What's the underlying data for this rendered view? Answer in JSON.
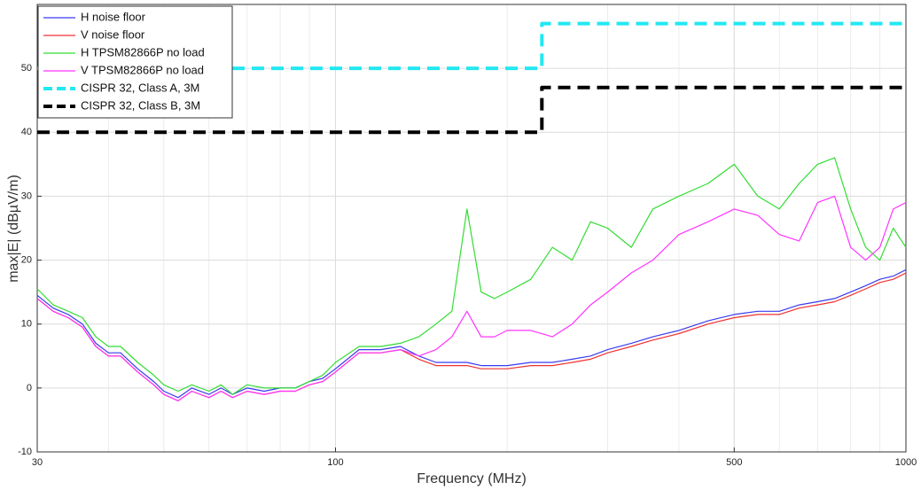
{
  "chart_data": {
    "type": "line",
    "x_label": "Frequency (MHz)",
    "y_label": "max|E| (dBµV/m)",
    "xscale": "log",
    "xlim": [
      30,
      1000
    ],
    "xticks": [
      30,
      100,
      500,
      1000
    ],
    "ylim": [
      -10,
      60
    ],
    "yticks": [
      -10,
      0,
      10,
      20,
      30,
      40,
      50
    ],
    "grid": true,
    "minor_grid": true,
    "legend": "upper left",
    "x": [
      30,
      32,
      34,
      36,
      38,
      40,
      42,
      45,
      48,
      50,
      53,
      56,
      60,
      63,
      66,
      70,
      75,
      80,
      85,
      90,
      95,
      100,
      110,
      120,
      130,
      140,
      150,
      160,
      170,
      180,
      190,
      200,
      220,
      240,
      260,
      280,
      300,
      330,
      360,
      400,
      450,
      500,
      550,
      600,
      650,
      700,
      750,
      800,
      850,
      900,
      950,
      1000
    ],
    "series": [
      {
        "name": "H noise floor",
        "color": "#3a3af0",
        "style": "solid",
        "values": [
          14.5,
          12.5,
          11.5,
          10,
          7,
          5.5,
          5.5,
          3,
          1,
          -0.5,
          -1.5,
          0,
          -1,
          0,
          -1,
          0,
          -0.5,
          0,
          0,
          1,
          1.5,
          3,
          6,
          6,
          6.5,
          5,
          4,
          4,
          4,
          3.5,
          3.5,
          3.5,
          4,
          4,
          4.5,
          5,
          6,
          7,
          8,
          9,
          10.5,
          11.5,
          12,
          12,
          13,
          13.5,
          14,
          15,
          16,
          17,
          17.5,
          18.5
        ]
      },
      {
        "name": "V noise floor",
        "color": "#f03030",
        "style": "solid",
        "values": [
          14,
          12,
          11,
          9.5,
          6.5,
          5,
          5,
          2.5,
          0.5,
          -1,
          -2,
          -0.5,
          -1.5,
          -0.5,
          -1.5,
          -0.5,
          -1,
          -0.5,
          -0.5,
          0.5,
          1,
          2.5,
          5.5,
          5.5,
          6,
          4.5,
          3.5,
          3.5,
          3.5,
          3,
          3,
          3,
          3.5,
          3.5,
          4,
          4.5,
          5.5,
          6.5,
          7.5,
          8.5,
          10,
          11,
          11.5,
          11.5,
          12.5,
          13,
          13.5,
          14.5,
          15.5,
          16.5,
          17,
          18
        ]
      },
      {
        "name": "H TPSM82866P no load",
        "color": "#33dd33",
        "style": "solid",
        "values": [
          15.5,
          13,
          12,
          11,
          8,
          6.5,
          6.5,
          4,
          2,
          0.5,
          -0.5,
          0.5,
          -0.5,
          0.5,
          -1,
          0.5,
          0,
          0,
          0,
          1,
          2,
          4,
          6.5,
          6.5,
          7,
          8,
          10,
          12,
          28,
          15,
          14,
          15,
          17,
          22,
          20,
          26,
          25,
          22,
          28,
          30,
          32,
          35,
          30,
          28,
          32,
          35,
          36,
          28,
          22,
          20,
          25,
          22
        ]
      },
      {
        "name": "V TPSM82866P no load",
        "color": "#ff33ff",
        "style": "solid",
        "values": [
          14,
          12,
          11,
          9.5,
          6.5,
          5,
          5,
          2.5,
          0.5,
          -1,
          -2,
          -0.5,
          -1.5,
          -0.5,
          -1.5,
          -0.5,
          -1,
          -0.5,
          -0.5,
          0.5,
          1,
          2.5,
          5.5,
          5.5,
          6,
          5,
          6,
          8,
          12,
          8,
          8,
          9,
          9,
          8,
          10,
          13,
          15,
          18,
          20,
          24,
          26,
          28,
          27,
          24,
          23,
          29,
          30,
          22,
          20,
          22,
          28,
          29
        ]
      },
      {
        "name": "CISPR 32, Class A, 3M",
        "color": "#22e8f2",
        "style": "dashed",
        "x": [
          30,
          230,
          230,
          1000
        ],
        "values": [
          50,
          50,
          57,
          57
        ]
      },
      {
        "name": "CISPR 32, Class B, 3M",
        "color": "#000000",
        "style": "dashed",
        "x": [
          30,
          230,
          230,
          1000
        ],
        "values": [
          40,
          40,
          47,
          47
        ]
      }
    ]
  }
}
